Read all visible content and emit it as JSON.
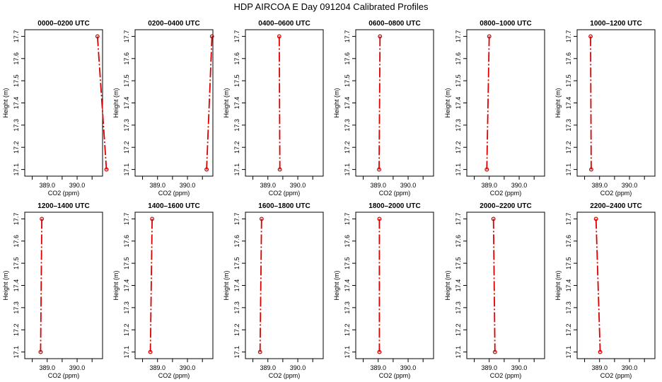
{
  "title": "HDP AIRCOA E  Day 091204  Calibrated Profiles",
  "style": {
    "line_color": "#dd0000",
    "frame_color": "#000000"
  },
  "axes": {
    "xlabel": "CO2 (ppm)",
    "ylabel": "Height (m)",
    "xlim": [
      388.25,
      390.85
    ],
    "ylim": [
      17.07,
      17.73
    ],
    "xticks": [
      389.0,
      390.0
    ],
    "xticks_hidden": [
      388.5,
      389.5,
      390.5
    ],
    "xtick_labels": [
      "389.0",
      "390.0"
    ],
    "yticks": [
      17.1,
      17.2,
      17.3,
      17.4,
      17.5,
      17.6,
      17.7
    ],
    "ytick_labels": [
      "17.1",
      "17.2",
      "17.3",
      "17.4",
      "17.5",
      "17.6",
      "17.7"
    ]
  },
  "chart_data": [
    {
      "type": "line",
      "title": "0000–0200 UTC",
      "series": [
        {
          "x": [
            390.68,
            390.98
          ],
          "y": [
            17.7,
            17.1
          ]
        }
      ]
    },
    {
      "type": "line",
      "title": "0200–0400 UTC",
      "series": [
        {
          "x": [
            390.82,
            390.64
          ],
          "y": [
            17.7,
            17.1
          ]
        }
      ]
    },
    {
      "type": "line",
      "title": "0400–0600 UTC",
      "series": [
        {
          "x": [
            389.38,
            389.4
          ],
          "y": [
            17.7,
            17.1
          ]
        }
      ]
    },
    {
      "type": "line",
      "title": "0600–0800 UTC",
      "series": [
        {
          "x": [
            389.06,
            389.03
          ],
          "y": [
            17.7,
            17.1
          ]
        }
      ]
    },
    {
      "type": "line",
      "title": "0800–1000 UTC",
      "series": [
        {
          "x": [
            389.0,
            388.92
          ],
          "y": [
            17.7,
            17.1
          ]
        }
      ]
    },
    {
      "type": "line",
      "title": "1000–1200 UTC",
      "series": [
        {
          "x": [
            388.7,
            388.72
          ],
          "y": [
            17.7,
            17.1
          ]
        }
      ]
    },
    {
      "type": "line",
      "title": "1200–1400 UTC",
      "series": [
        {
          "x": [
            388.82,
            388.78
          ],
          "y": [
            17.7,
            17.1
          ]
        }
      ]
    },
    {
      "type": "line",
      "title": "1400–1600 UTC",
      "series": [
        {
          "x": [
            388.82,
            388.76
          ],
          "y": [
            17.7,
            17.1
          ]
        }
      ]
    },
    {
      "type": "line",
      "title": "1600–1800 UTC",
      "series": [
        {
          "x": [
            388.79,
            388.74
          ],
          "y": [
            17.7,
            17.1
          ]
        }
      ]
    },
    {
      "type": "line",
      "title": "1800–2000 UTC",
      "series": [
        {
          "x": [
            389.04,
            389.04
          ],
          "y": [
            17.7,
            17.1
          ]
        }
      ]
    },
    {
      "type": "line",
      "title": "2000–2200 UTC",
      "series": [
        {
          "x": [
            389.14,
            389.19
          ],
          "y": [
            17.7,
            17.1
          ]
        }
      ]
    },
    {
      "type": "line",
      "title": "2200–2400 UTC",
      "series": [
        {
          "x": [
            388.88,
            389.02
          ],
          "y": [
            17.7,
            17.1
          ]
        }
      ]
    }
  ]
}
